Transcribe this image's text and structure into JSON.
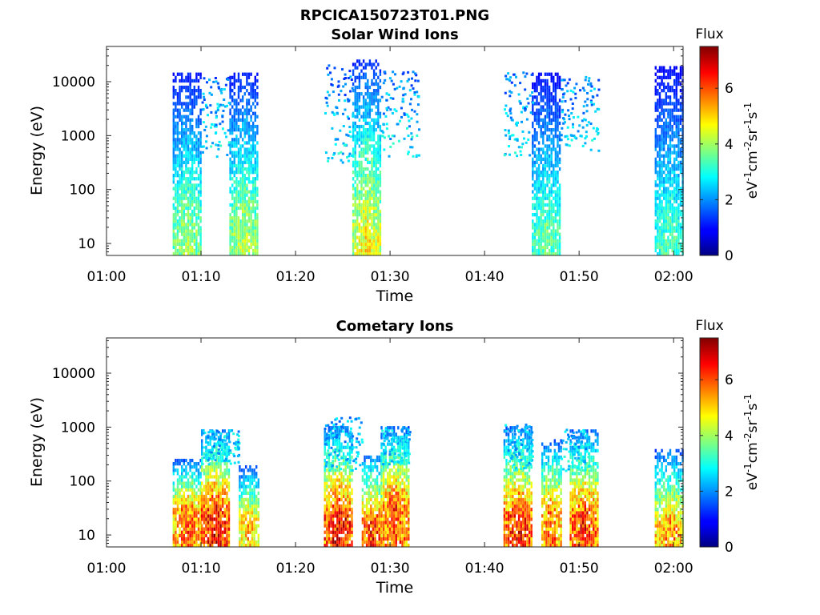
{
  "figure_title": "RPCICA150723T01.PNG",
  "chart_data": [
    {
      "type": "heatmap",
      "title": "Solar Wind Ions",
      "xlabel": "Time",
      "ylabel": "Energy (eV)",
      "y_scale": "log",
      "xlim": [
        "01:00",
        "02:01"
      ],
      "ylim": [
        6,
        45000
      ],
      "x_ticks": [
        "01:00",
        "01:10",
        "01:20",
        "01:30",
        "01:40",
        "01:50",
        "02:00"
      ],
      "y_ticks": [
        "10",
        "100",
        "1000",
        "10000"
      ],
      "colorbar": {
        "title": "Flux",
        "label": "eV-1cm-2sr-1s-1",
        "range": [
          0,
          7.5
        ],
        "ticks": [
          "0",
          "2",
          "4",
          "6"
        ],
        "colormap": "jet"
      },
      "bursts": [
        {
          "start": "01:07",
          "end": "01:10",
          "emin": 6,
          "emax": 15000,
          "peak_flux": 4.0,
          "peak_energy": 15
        },
        {
          "start": "01:13",
          "end": "01:16",
          "emin": 6,
          "emax": 15000,
          "peak_flux": 4.2,
          "peak_energy": 15
        },
        {
          "start": "01:26",
          "end": "01:29",
          "emin": 6,
          "emax": 25000,
          "peak_flux": 4.8,
          "peak_energy": 15
        },
        {
          "start": "01:45",
          "end": "01:48",
          "emin": 6,
          "emax": 15000,
          "peak_flux": 3.6,
          "peak_energy": 15
        },
        {
          "start": "01:58",
          "end": "02:01",
          "emin": 6,
          "emax": 20000,
          "peak_flux": 3.4,
          "peak_energy": 15
        }
      ],
      "sparse_ranges": [
        {
          "start": "01:10",
          "end": "01:13",
          "emin": 400,
          "emax": 12000
        },
        {
          "start": "01:23",
          "end": "01:26",
          "emin": 300,
          "emax": 20000
        },
        {
          "start": "01:29",
          "end": "01:33",
          "emin": 400,
          "emax": 15000
        },
        {
          "start": "01:42",
          "end": "01:45",
          "emin": 400,
          "emax": 15000
        },
        {
          "start": "01:48",
          "end": "01:52",
          "emin": 500,
          "emax": 12000
        }
      ]
    },
    {
      "type": "heatmap",
      "title": "Cometary Ions",
      "xlabel": "Time",
      "ylabel": "Energy (eV)",
      "y_scale": "log",
      "xlim": [
        "01:00",
        "02:01"
      ],
      "ylim": [
        6,
        45000
      ],
      "x_ticks": [
        "01:00",
        "01:10",
        "01:20",
        "01:30",
        "01:40",
        "01:50",
        "02:00"
      ],
      "y_ticks": [
        "10",
        "100",
        "1000",
        "10000"
      ],
      "colorbar": {
        "title": "Flux",
        "label": "eV-1cm-2sr-1s-1",
        "range": [
          0,
          7.5
        ],
        "ticks": [
          "0",
          "2",
          "4",
          "6"
        ],
        "colormap": "jet"
      },
      "bursts": [
        {
          "start": "01:07",
          "end": "01:10",
          "emin": 6,
          "emax": 250,
          "peak_flux": 5.8,
          "peak_energy": 30
        },
        {
          "start": "01:10",
          "end": "01:13",
          "emin": 6,
          "emax": 900,
          "peak_flux": 6.6,
          "peak_energy": 25
        },
        {
          "start": "01:14",
          "end": "01:16",
          "emin": 6,
          "emax": 200,
          "peak_flux": 5.2,
          "peak_energy": 20
        },
        {
          "start": "01:23",
          "end": "01:26",
          "emin": 6,
          "emax": 1000,
          "peak_flux": 6.7,
          "peak_energy": 20
        },
        {
          "start": "01:27",
          "end": "01:29",
          "emin": 6,
          "emax": 300,
          "peak_flux": 6.3,
          "peak_energy": 18
        },
        {
          "start": "01:29",
          "end": "01:32",
          "emin": 6,
          "emax": 1000,
          "peak_flux": 6.0,
          "peak_energy": 40
        },
        {
          "start": "01:42",
          "end": "01:45",
          "emin": 6,
          "emax": 1000,
          "peak_flux": 6.4,
          "peak_energy": 22
        },
        {
          "start": "01:46",
          "end": "01:48",
          "emin": 6,
          "emax": 600,
          "peak_flux": 5.8,
          "peak_energy": 25
        },
        {
          "start": "01:49",
          "end": "01:52",
          "emin": 6,
          "emax": 900,
          "peak_flux": 6.3,
          "peak_energy": 22
        },
        {
          "start": "01:58",
          "end": "02:01",
          "emin": 6,
          "emax": 400,
          "peak_flux": 5.6,
          "peak_energy": 15
        }
      ],
      "sparse_ranges": [
        {
          "start": "01:10",
          "end": "01:14",
          "emin": 200,
          "emax": 900
        },
        {
          "start": "01:23",
          "end": "01:27",
          "emin": 150,
          "emax": 1500
        },
        {
          "start": "01:29",
          "end": "01:32",
          "emin": 200,
          "emax": 1000
        },
        {
          "start": "01:42",
          "end": "01:45",
          "emin": 150,
          "emax": 1100
        },
        {
          "start": "01:48",
          "end": "01:51",
          "emin": 150,
          "emax": 900
        }
      ]
    }
  ]
}
